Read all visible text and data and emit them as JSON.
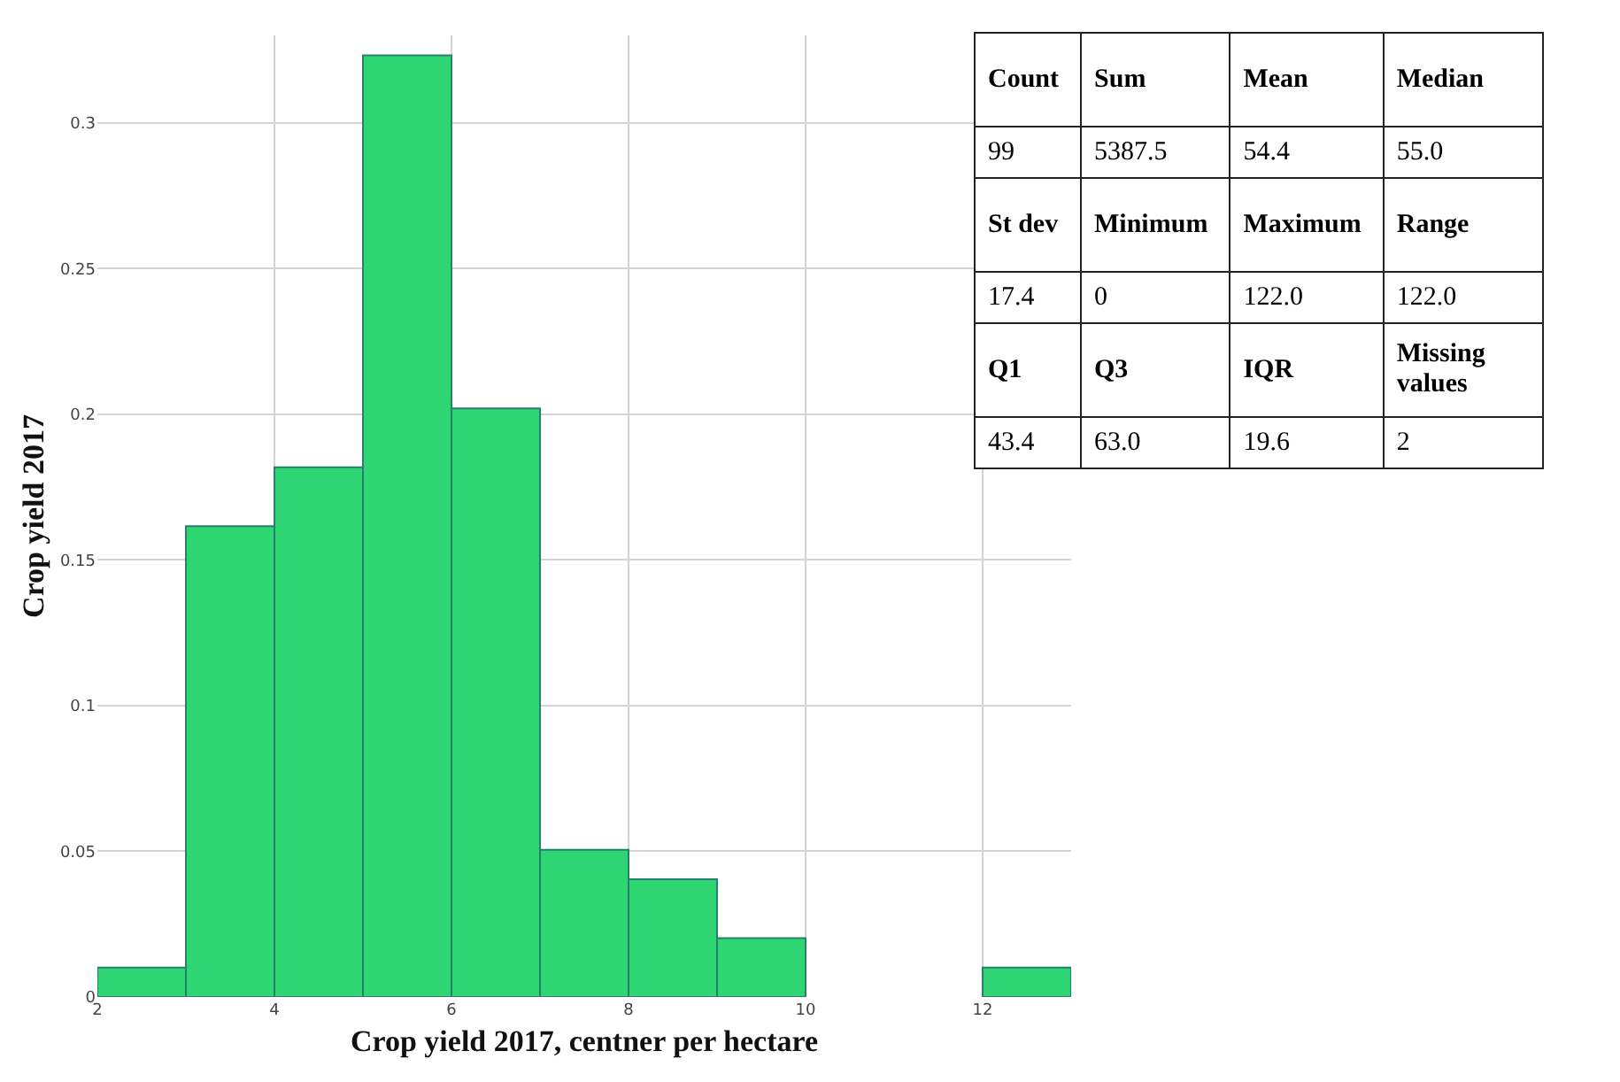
{
  "chart_data": [
    {
      "type": "histogram",
      "xlabel": "Crop yield 2017, centner per hectare",
      "ylabel": "Crop yield 2017",
      "bins": [
        2,
        3,
        4,
        5,
        6,
        7,
        8,
        9,
        10,
        11,
        12,
        13
      ],
      "values": [
        0.0101,
        0.1616,
        0.1818,
        0.3232,
        0.202,
        0.0505,
        0.0404,
        0.0202,
        0,
        0,
        0.0101
      ],
      "color": "#2ed573",
      "xlim": [
        2,
        13
      ],
      "xticks": [
        2,
        4,
        6,
        8,
        10,
        12
      ],
      "ylim": [
        0,
        0.33
      ],
      "yticks": [
        0,
        0.05,
        0.1,
        0.15,
        0.2,
        0.25,
        0.3
      ],
      "grid": true
    },
    {
      "type": "other",
      "annotations": [
        "Count",
        "Sum",
        "Mean",
        "Median",
        "99",
        "5387.5",
        "54.4",
        "55.0",
        "St dev",
        "Minimum",
        "Maximum",
        "Range",
        "17.4",
        "0",
        "122.0",
        "122.0",
        "Q1",
        "Q3",
        "IQR",
        "Missing values",
        "43.4",
        "63.0",
        "19.6",
        "2"
      ]
    }
  ]
}
